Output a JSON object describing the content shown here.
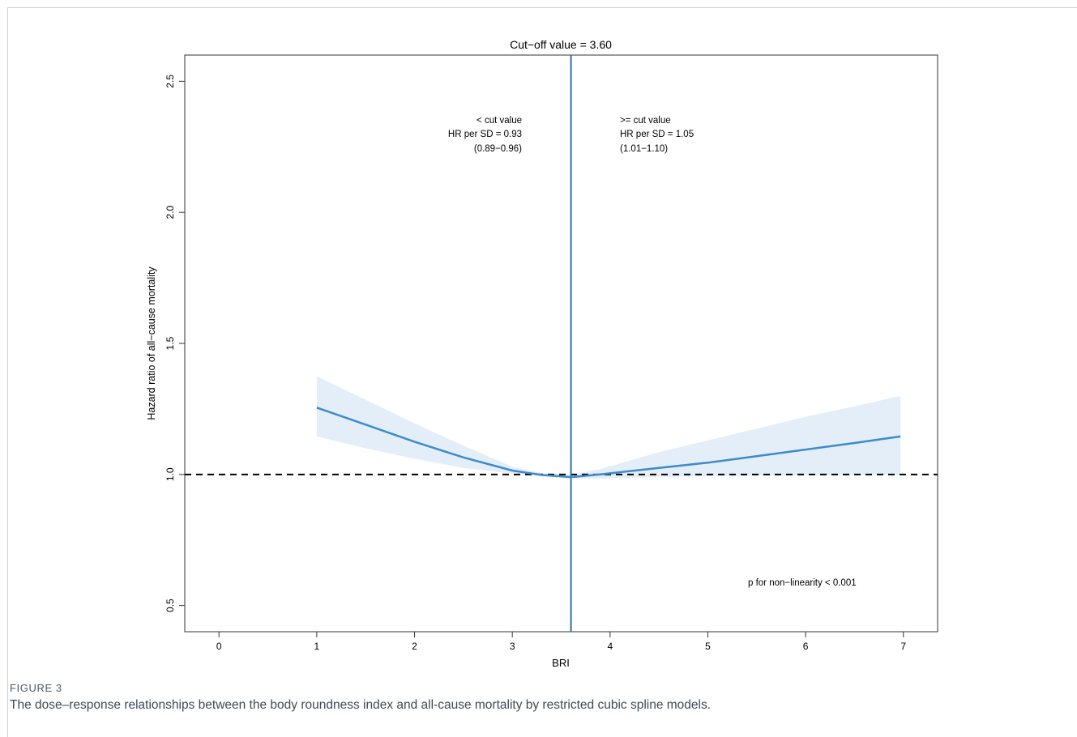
{
  "figure": {
    "label": "FIGURE 3",
    "caption": "The dose–response relationships between the body roundness index and all-cause mortality by restricted cubic spline models."
  },
  "chart_data": {
    "type": "line",
    "title": "Cut−off value = 3.60",
    "xlabel": "BRI",
    "ylabel": "Hazard ratio of all−cause mortality",
    "xlim": [
      -0.35,
      7.35
    ],
    "ylim": [
      0.4,
      2.6
    ],
    "x_ticks": [
      0,
      1,
      2,
      3,
      4,
      5,
      6,
      7
    ],
    "y_ticks": [
      0.5,
      1.0,
      1.5,
      2.0,
      2.5
    ],
    "y_tick_labels": [
      "0.5",
      "1.0",
      "1.5",
      "2.0",
      "2.5"
    ],
    "grid": false,
    "cutoff": 3.6,
    "reference_line": 1.0,
    "series": [
      {
        "color": "#3d8bc9",
        "x": [
          1.0,
          1.5,
          2.0,
          2.5,
          3.0,
          3.3,
          3.6,
          3.9,
          4.5,
          5.0,
          5.5,
          6.0,
          6.5,
          6.97
        ],
        "y": [
          1.255,
          1.19,
          1.125,
          1.065,
          1.015,
          0.998,
          0.99,
          1.0,
          1.025,
          1.045,
          1.07,
          1.095,
          1.12,
          1.145
        ],
        "lower": [
          1.145,
          1.1,
          1.06,
          1.025,
          1.003,
          0.997,
          0.985,
          0.985,
          0.99,
          0.993,
          0.995,
          0.997,
          0.998,
          0.999
        ],
        "upper": [
          1.375,
          1.285,
          1.195,
          1.11,
          1.03,
          1.005,
          1.0,
          1.02,
          1.085,
          1.13,
          1.175,
          1.22,
          1.26,
          1.3
        ]
      }
    ],
    "annotations": {
      "left": [
        "< cut value",
        "HR per SD = 0.93",
        "(0.89−0.96)"
      ],
      "right": [
        ">= cut value",
        "HR per SD = 1.05",
        "(1.01−1.10)"
      ],
      "pvalue": "p for non−linearity < 0.001"
    },
    "colors": {
      "line": "#3d8bc9",
      "band": "#e4eef8",
      "cutoff": "#2f6fa8",
      "reference": "#000000"
    }
  }
}
